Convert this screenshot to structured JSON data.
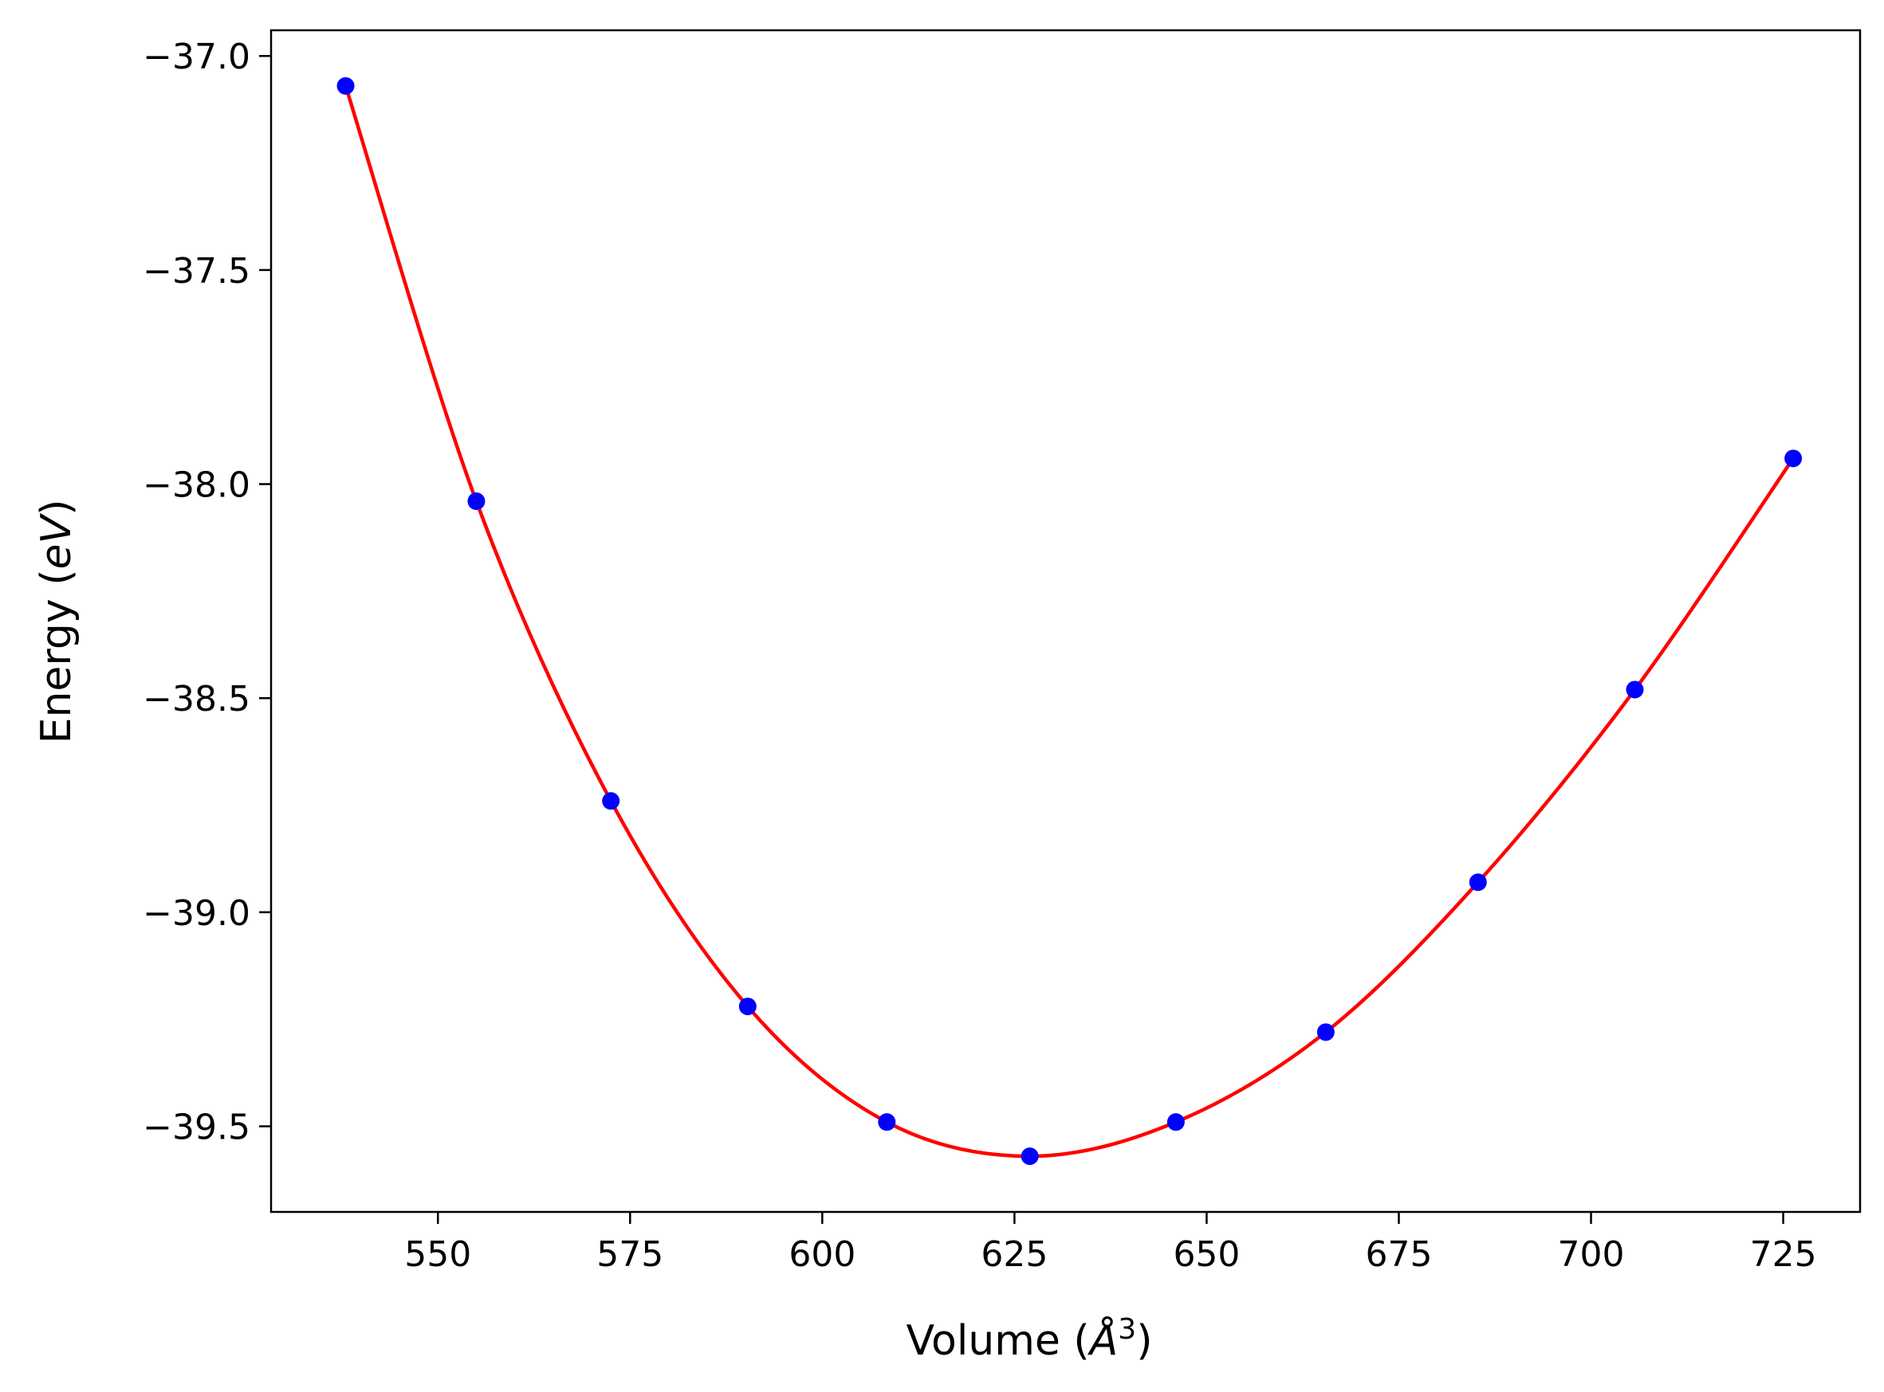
{
  "chart_data": {
    "type": "line",
    "xlabel": "Volume (Å³)",
    "xlabel_parts": {
      "main": "Volume (",
      "italic": "Å",
      "sup": "3",
      "end": ")"
    },
    "ylabel": "Energy (eV)",
    "ylabel_parts": {
      "main": "Energy (",
      "italic": "eV",
      "end": ")"
    },
    "xlim": [
      528.3,
      735.0
    ],
    "ylim": [
      -39.7,
      -36.94
    ],
    "xticks": [
      550,
      575,
      600,
      625,
      650,
      675,
      700,
      725
    ],
    "xtick_labels": [
      "550",
      "575",
      "600",
      "625",
      "650",
      "675",
      "700",
      "725"
    ],
    "yticks": [
      -37.0,
      -37.5,
      -38.0,
      -38.5,
      -39.0,
      -39.5
    ],
    "ytick_labels": [
      "−37.0",
      "−37.5",
      "−38.0",
      "−38.5",
      "−39.0",
      "−39.5"
    ],
    "grid": false,
    "series": [
      {
        "kind": "scatter",
        "color": "#0000ff",
        "points": [
          [
            538.0,
            -37.07
          ],
          [
            555.0,
            -38.04
          ],
          [
            572.5,
            -38.74
          ],
          [
            590.3,
            -39.22
          ],
          [
            608.4,
            -39.49
          ],
          [
            627.0,
            -39.57
          ],
          [
            646.0,
            -39.49
          ],
          [
            665.5,
            -39.28
          ],
          [
            685.3,
            -38.93
          ],
          [
            705.7,
            -38.48
          ],
          [
            726.3,
            -37.94
          ]
        ]
      },
      {
        "kind": "fit-curve",
        "color": "#ff0000",
        "x_range": [
          538.0,
          726.3
        ]
      }
    ]
  }
}
